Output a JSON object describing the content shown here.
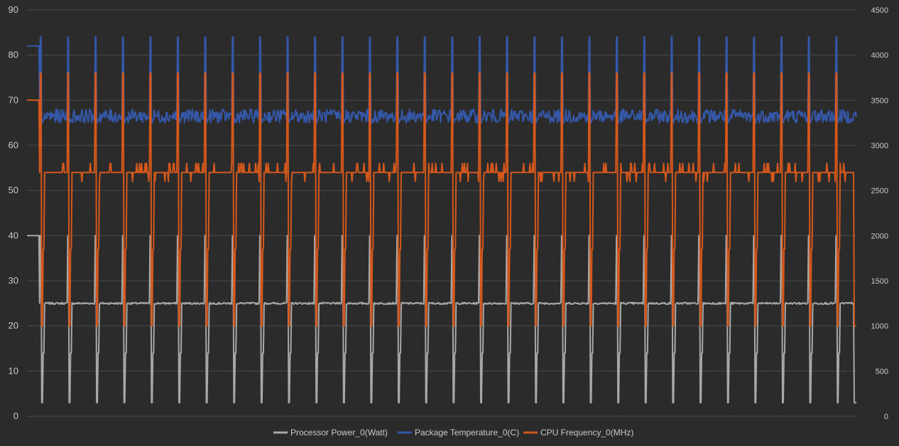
{
  "chart_data": {
    "type": "line",
    "y_left": {
      "ticks": [
        "0",
        "10",
        "20",
        "30",
        "40",
        "50",
        "60",
        "70",
        "80",
        "90"
      ],
      "range": [
        0,
        90
      ]
    },
    "y_right": {
      "ticks": [
        "0",
        "500",
        "1000",
        "1500",
        "2000",
        "2500",
        "3000",
        "3500",
        "4000",
        "4500"
      ],
      "range": [
        0,
        4500
      ]
    },
    "grid": true,
    "legend_position": "bottom-center",
    "sample_count": 1180,
    "series": [
      {
        "name": "Processor Power_0(Watt)",
        "color": "#a8a8a8",
        "axis": "left",
        "baseline": 25,
        "initial_level": 40,
        "spike_high": 40,
        "spike_low": 3,
        "final_value": 3
      },
      {
        "name": "Package Temperature_0(C)",
        "color": "#3557a8",
        "axis": "left",
        "baseline": 66.5,
        "initial_level": 82,
        "spike_high": 84,
        "spike_low": 65
      },
      {
        "name": "CPU Frequency_0(MHz)",
        "color": "#d4581c",
        "axis": "right",
        "baseline": 2700,
        "initial_level": 3500,
        "spike_high": 3800,
        "spike_low": 1000,
        "final_value": 1000
      }
    ]
  }
}
